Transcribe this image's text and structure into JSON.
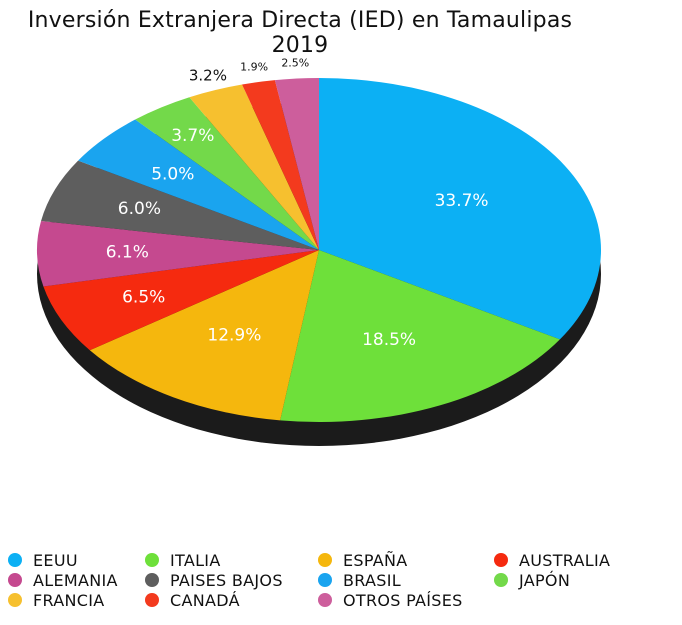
{
  "chart_data": {
    "type": "pie",
    "title": "Inversión Extranjera Directa (IED) en Tamaulipas 2019",
    "slices": [
      {
        "name": "EEUU",
        "value": 33.7,
        "label": "33.7%",
        "color": "#0cb0f4"
      },
      {
        "name": "ITALIA",
        "value": 18.5,
        "label": "18.5%",
        "color": "#6ee03a"
      },
      {
        "name": "ESPAÑA",
        "value": 12.9,
        "label": "12.9%",
        "color": "#f5b70d"
      },
      {
        "name": "AUSTRALIA",
        "value": 6.5,
        "label": "6.5%",
        "color": "#f52a0f"
      },
      {
        "name": "ALEMANIA",
        "value": 6.1,
        "label": "6.1%",
        "color": "#c5498f"
      },
      {
        "name": "PAISES BAJOS",
        "value": 6.0,
        "label": "6.0%",
        "color": "#5e5e5e"
      },
      {
        "name": "BRASIL",
        "value": 5.0,
        "label": "5.0%",
        "color": "#1aa4ef"
      },
      {
        "name": "JAPÓN",
        "value": 3.7,
        "label": "3.7%",
        "color": "#73d94a"
      },
      {
        "name": "FRANCIA",
        "value": 3.2,
        "label": "3.2%",
        "color": "#f6c02f"
      },
      {
        "name": "CANADÁ",
        "value": 1.9,
        "label": "1.9%",
        "color": "#f33a1e"
      },
      {
        "name": "OTROS PAÍSES",
        "value": 2.5,
        "label": "2.5%",
        "color": "#cd5e9c"
      }
    ],
    "legend_order": [
      "EEUU",
      "ITALIA",
      "ESPAÑA",
      "AUSTRALIA",
      "ALEMANIA",
      "PAISES BAJOS",
      "BRASIL",
      "JAPÓN",
      "FRANCIA",
      "CANADÁ",
      "OTROS PAÍSES"
    ],
    "legend_position": "bottom"
  }
}
